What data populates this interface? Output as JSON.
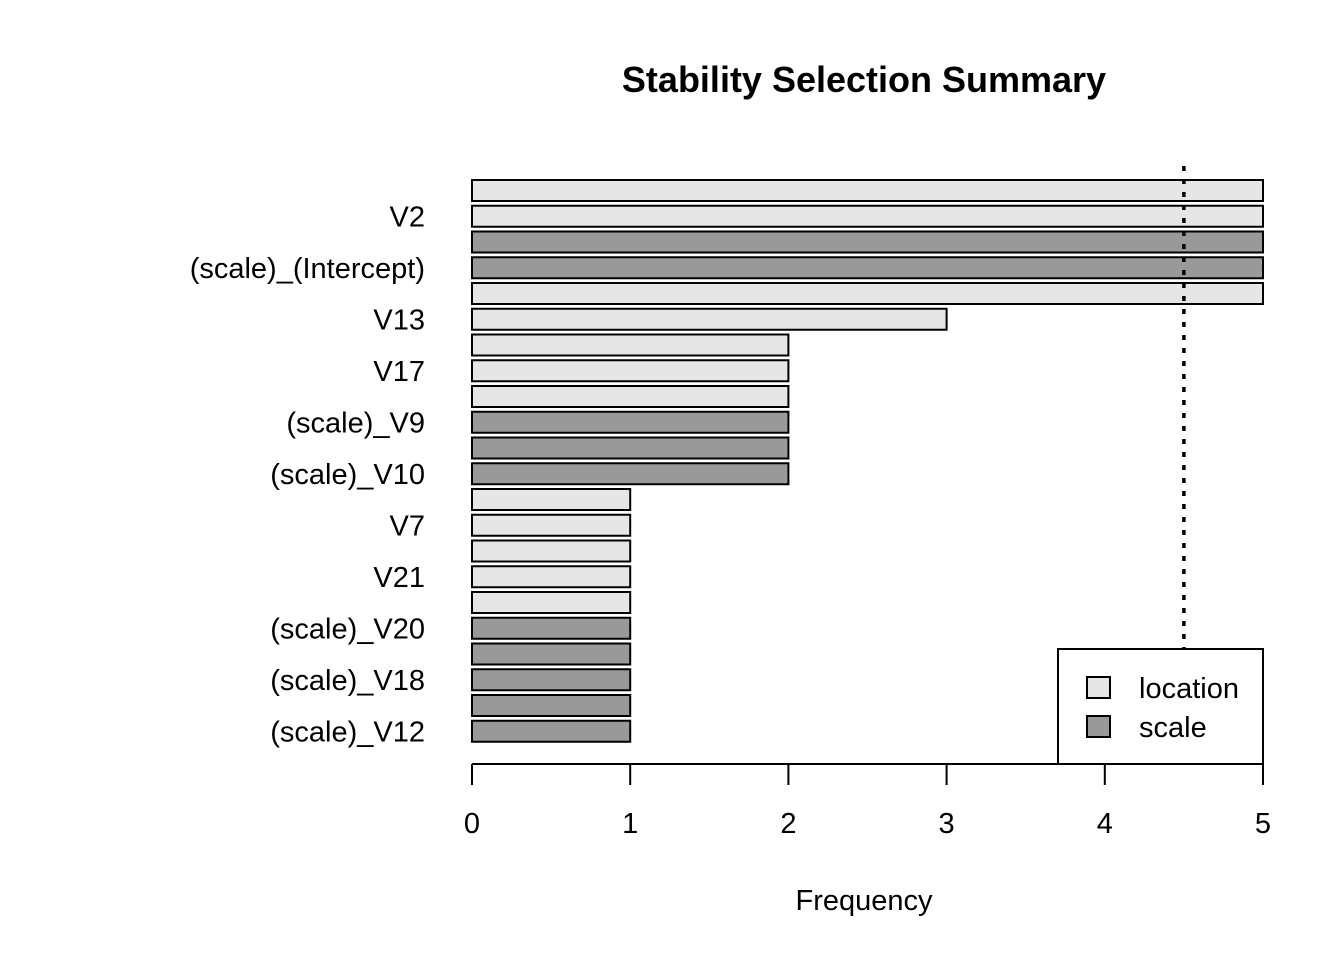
{
  "chart_data": {
    "type": "bar",
    "orientation": "horizontal",
    "title": "Stability Selection Summary",
    "xlabel": "Frequency",
    "ylabel": "",
    "xlim": [
      0,
      5
    ],
    "x_ticks": [
      0,
      1,
      2,
      3,
      4,
      5
    ],
    "threshold": 4.5,
    "labeled_categories": [
      "V2",
      "(scale)_(Intercept)",
      "V13",
      "V17",
      "(scale)_V9",
      "(scale)_V10",
      "V7",
      "V21",
      "(scale)_V20",
      "(scale)_V18",
      "(scale)_V12"
    ],
    "bars": [
      {
        "type": "location",
        "value": 5
      },
      {
        "type": "location",
        "value": 5
      },
      {
        "type": "scale",
        "value": 5
      },
      {
        "type": "scale",
        "value": 5
      },
      {
        "type": "location",
        "value": 5
      },
      {
        "type": "location",
        "value": 3
      },
      {
        "type": "location",
        "value": 2
      },
      {
        "type": "location",
        "value": 2
      },
      {
        "type": "location",
        "value": 2
      },
      {
        "type": "scale",
        "value": 2
      },
      {
        "type": "scale",
        "value": 2
      },
      {
        "type": "scale",
        "value": 2
      },
      {
        "type": "location",
        "value": 1
      },
      {
        "type": "location",
        "value": 1
      },
      {
        "type": "location",
        "value": 1
      },
      {
        "type": "location",
        "value": 1
      },
      {
        "type": "location",
        "value": 1
      },
      {
        "type": "scale",
        "value": 1
      },
      {
        "type": "scale",
        "value": 1
      },
      {
        "type": "scale",
        "value": 1
      },
      {
        "type": "scale",
        "value": 1
      },
      {
        "type": "scale",
        "value": 1
      }
    ],
    "legend": {
      "position": "bottom-right",
      "entries": [
        {
          "name": "location",
          "color": "#e6e6e6"
        },
        {
          "name": "scale",
          "color": "#999999"
        }
      ]
    },
    "colors": {
      "location": "#e6e6e6",
      "scale": "#999999"
    },
    "grid": false
  }
}
